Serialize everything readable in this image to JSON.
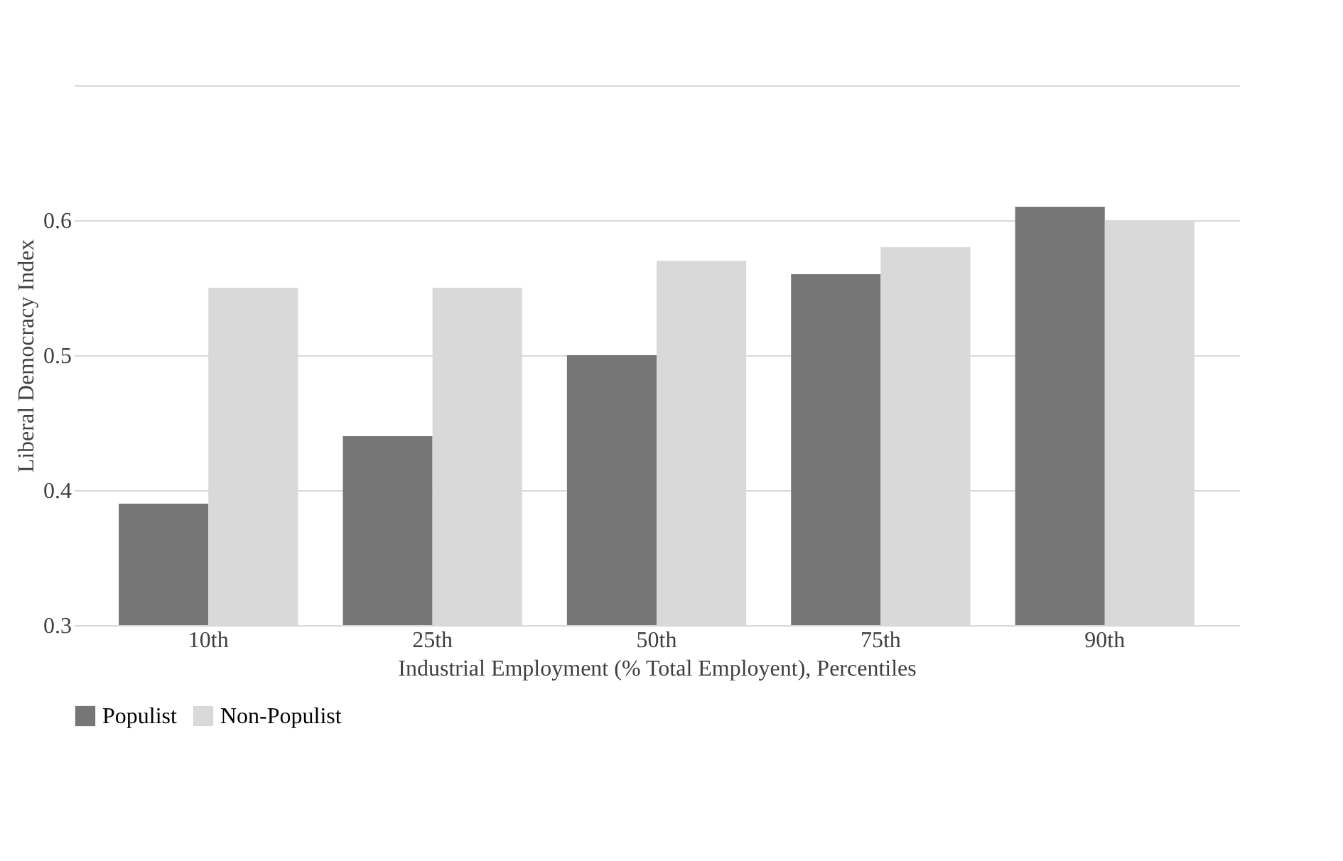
{
  "chart_data": {
    "type": "bar",
    "xlabel": "Industrial Employment (% Total Employent), Percentiles",
    "ylabel": "Liberal Democracy Index",
    "categories": [
      "10th",
      "25th",
      "50th",
      "75th",
      "90th"
    ],
    "series": [
      {
        "name": "Populist",
        "color": "#767676",
        "values": [
          0.39,
          0.44,
          0.5,
          0.56,
          0.61
        ]
      },
      {
        "name": "Non-Populist",
        "color": "#d9d9d9",
        "values": [
          0.55,
          0.55,
          0.57,
          0.58,
          0.6
        ]
      }
    ],
    "ylim": [
      0.3,
      0.7
    ],
    "yticks": [
      0.3,
      0.4,
      0.5,
      0.6,
      {
        "value": 0.7,
        "label": null
      }
    ],
    "grid": "y",
    "legend": "bottom"
  }
}
